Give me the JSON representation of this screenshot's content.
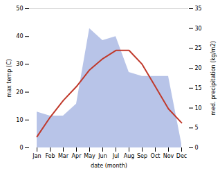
{
  "chart_data": {
    "type": "line",
    "xlabel": "date (month)",
    "ylabel": "max temp (C)",
    "y2label": "med. precipitation (kg/m2)",
    "categories": [
      "Jan",
      "Feb",
      "Mar",
      "Apr",
      "May",
      "Jun",
      "Jul",
      "Aug",
      "Sep",
      "Oct",
      "Nov",
      "Dec"
    ],
    "series": [
      {
        "type": "area",
        "color": "#b8c4e8",
        "axis": "y2",
        "values": [
          9,
          8,
          8,
          11,
          30,
          27,
          28,
          19,
          18,
          18,
          18,
          1
        ]
      },
      {
        "type": "line",
        "color": "#c0392b",
        "values": [
          4,
          11,
          17,
          22,
          28,
          32,
          35,
          35,
          30,
          22,
          14,
          9
        ]
      }
    ],
    "ylim": [
      0,
      50
    ],
    "yticks": [
      0,
      10,
      20,
      30,
      40,
      50
    ],
    "y2lim": [
      0,
      35
    ],
    "y2ticks": [
      0,
      5,
      10,
      15,
      20,
      25,
      30,
      35
    ]
  }
}
